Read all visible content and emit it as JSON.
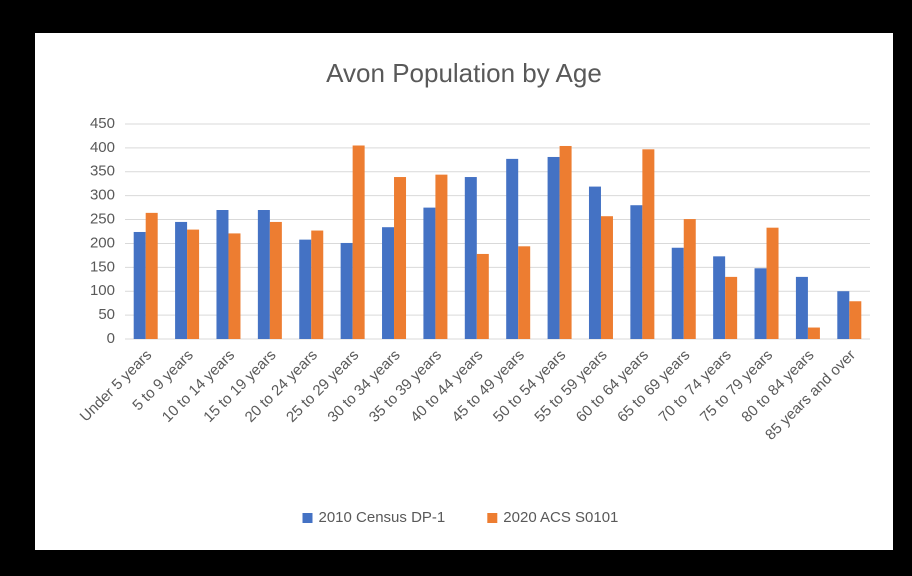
{
  "chart_data": {
    "type": "bar",
    "title": "Avon Population by Age",
    "categories": [
      "Under 5 years",
      "5 to 9 years",
      "10 to 14 years",
      "15 to 19 years",
      "20 to 24 years",
      "25 to 29 years",
      "30 to 34 years",
      "35 to 39 years",
      "40 to 44 years",
      "45 to 49 years",
      "50 to 54 years",
      "55 to 59 years",
      "60 to 64 years",
      "65 to 69 years",
      "70 to 74 years",
      "75 to 79 years",
      "80 to 84 years",
      "85 years and over"
    ],
    "series": [
      {
        "name": "2010 Census DP-1",
        "color": "#4472c4",
        "values": [
          224,
          245,
          270,
          270,
          208,
          201,
          234,
          275,
          339,
          377,
          381,
          319,
          280,
          191,
          173,
          148,
          130,
          100
        ]
      },
      {
        "name": "2020 ACS S0101",
        "color": "#ed7d31",
        "values": [
          264,
          229,
          221,
          245,
          227,
          405,
          339,
          344,
          178,
          194,
          404,
          257,
          397,
          251,
          130,
          233,
          24,
          79
        ]
      }
    ],
    "ylim": [
      0,
      450
    ],
    "yticks": [
      0,
      50,
      100,
      150,
      200,
      250,
      300,
      350,
      400,
      450
    ],
    "grid": true,
    "legend": "bottom"
  }
}
